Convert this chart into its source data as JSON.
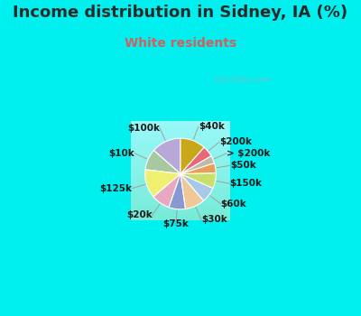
{
  "title": "Income distribution in Sidney, IA (%)",
  "subtitle": "White residents",
  "title_color": "#2a2a2a",
  "subtitle_color": "#d06060",
  "cyan_color": "#00f0f0",
  "watermark": "City-Data.com",
  "labels": [
    "$100k",
    "$10k",
    "$125k",
    "$20k",
    "$75k",
    "$30k",
    "$60k",
    "$150k",
    "$50k",
    "> $200k",
    "$200k",
    "$40k"
  ],
  "values": [
    13.5,
    9.5,
    13.0,
    8.5,
    7.5,
    9.0,
    7.0,
    7.0,
    4.5,
    3.5,
    5.0,
    11.5
  ],
  "colors": [
    "#b8a8d8",
    "#a8c8a0",
    "#f0f070",
    "#e8a8c0",
    "#8898d0",
    "#f0c898",
    "#a8c8e8",
    "#c8e068",
    "#e8a058",
    "#c0b8a8",
    "#e86878",
    "#c8a818"
  ],
  "label_fontsize": 7.5,
  "title_fontsize": 13,
  "subtitle_fontsize": 10,
  "startangle": 90
}
